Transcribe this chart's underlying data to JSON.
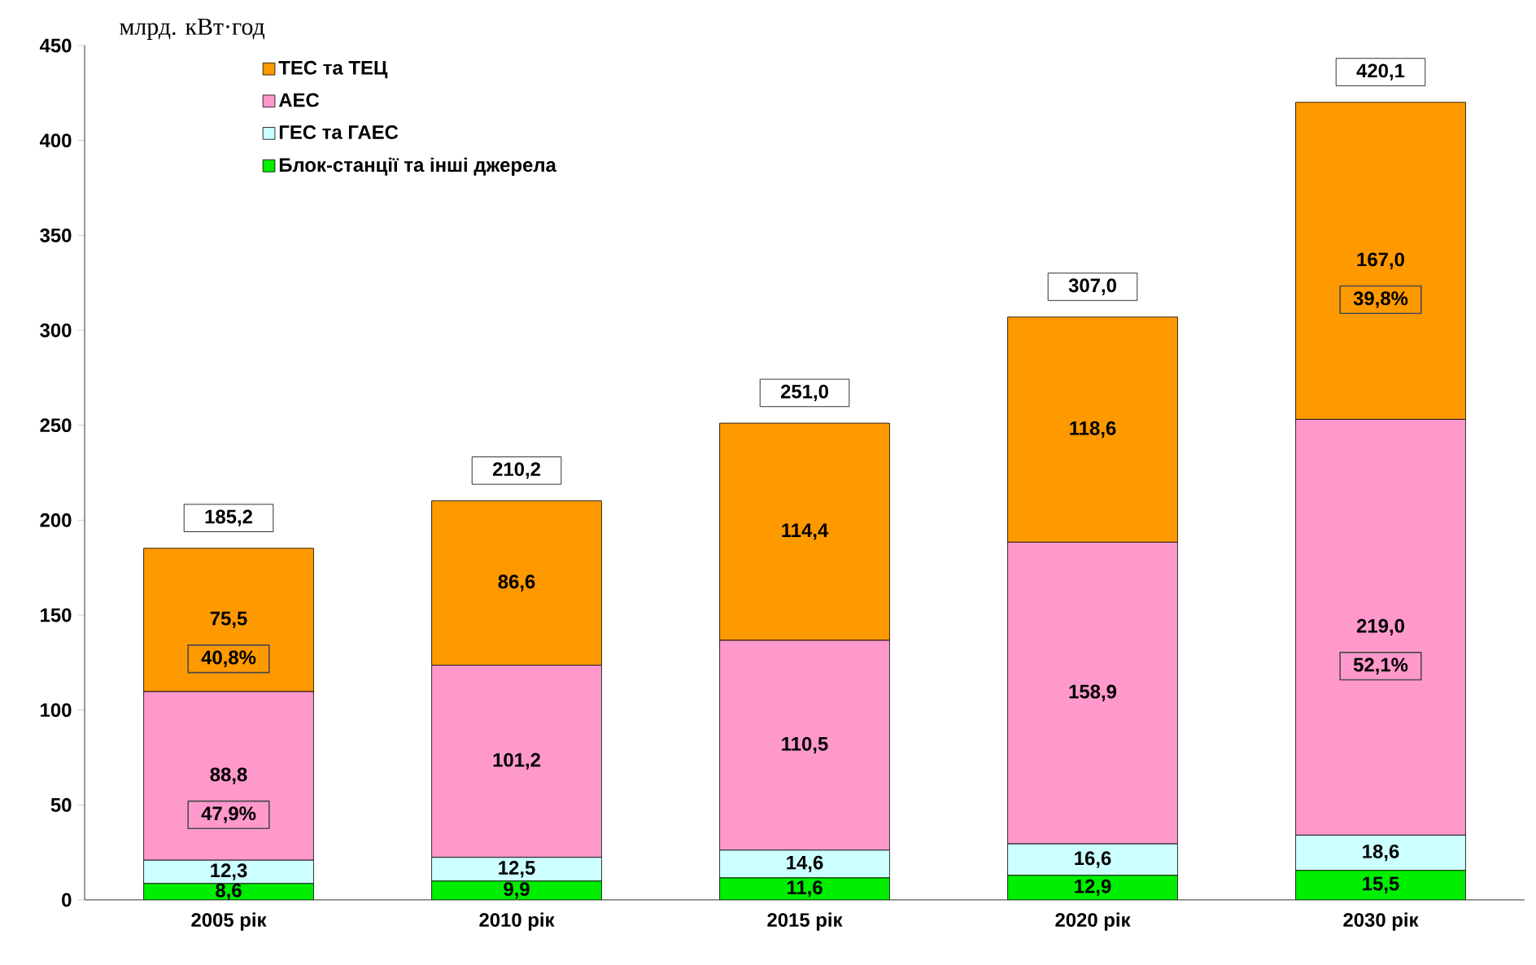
{
  "chart_data": {
    "type": "bar",
    "stacked": true,
    "ylabel": "млрд. кВт·год",
    "categories": [
      "2005 рік",
      "2010 рік",
      "2015 рік",
      "2020 рік",
      "2030 рік"
    ],
    "series": [
      {
        "name": "Блок-станції та інші джерела",
        "color": "#00ee00",
        "values": [
          8.6,
          9.9,
          11.6,
          12.9,
          15.5
        ],
        "value_labels": [
          "8,6",
          "9,9",
          "11,6",
          "12,9",
          "15,5"
        ]
      },
      {
        "name": "ГЕС та ГАЕС",
        "color": "#ccffff",
        "values": [
          12.3,
          12.5,
          14.6,
          16.6,
          18.6
        ],
        "value_labels": [
          "12,3",
          "12,5",
          "14,6",
          "16,6",
          "18,6"
        ]
      },
      {
        "name": "АЕС",
        "color": "#ff99cc",
        "values": [
          88.8,
          101.2,
          110.5,
          158.9,
          219.0
        ],
        "value_labels": [
          "88,8",
          "101,2",
          "110,5",
          "158,9",
          "219,0"
        ]
      },
      {
        "name": "ТЕС та ТЕЦ",
        "color": "#ff9900",
        "values": [
          75.5,
          86.6,
          114.4,
          118.6,
          167.0
        ],
        "value_labels": [
          "75,5",
          "86,6",
          "114,4",
          "118,6",
          "167,0"
        ]
      }
    ],
    "totals": [
      "185,2",
      "210,2",
      "251,0",
      "307,0",
      "420,1"
    ],
    "annotations": [
      "40,8%",
      "47,9%",
      "39,8%",
      "52,1%"
    ],
    "ylim": [
      0,
      450
    ],
    "yticks": [
      0,
      50,
      100,
      150,
      200,
      250,
      300,
      350,
      400,
      450
    ],
    "grid": false,
    "legend": "top left"
  }
}
